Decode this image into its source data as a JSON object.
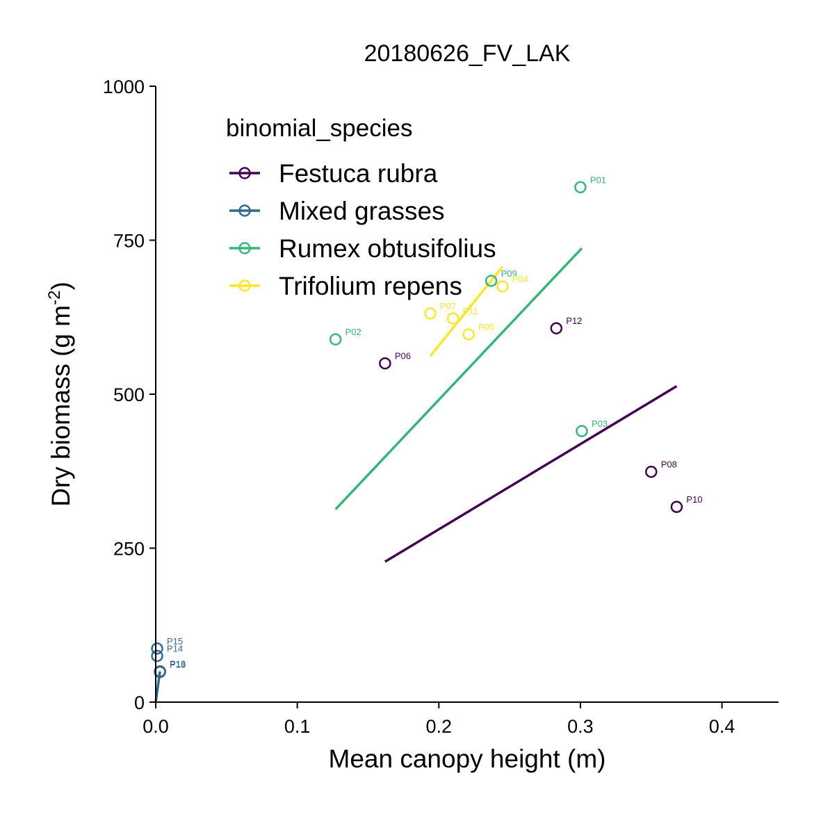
{
  "chart_data": {
    "type": "scatter",
    "title": "20180626_FV_LAK",
    "xlabel": "Mean canopy height (m)",
    "ylabel": "Dry biomass (g m",
    "ylabel_sup": "-2",
    "ylabel_close": ")",
    "xlim": [
      0,
      0.44
    ],
    "ylim": [
      0,
      1000
    ],
    "xticks": [
      0.0,
      0.1,
      0.2,
      0.3,
      0.4
    ],
    "xtick_labels": [
      "0.0",
      "0.1",
      "0.2",
      "0.3",
      "0.4"
    ],
    "yticks": [
      0,
      250,
      500,
      750,
      1000
    ],
    "ytick_labels": [
      "0",
      "250",
      "500",
      "750",
      "1000"
    ],
    "grid": false,
    "legend": {
      "title": "binomial_species",
      "position": "top-left"
    },
    "series": [
      {
        "name": "Festuca rubra",
        "color": "#440154",
        "points": [
          {
            "label": "P06",
            "x": 0.162,
            "y": 550
          },
          {
            "label": "P12",
            "x": 0.283,
            "y": 607
          },
          {
            "label": "P08",
            "x": 0.35,
            "y": 374
          },
          {
            "label": "P10",
            "x": 0.368,
            "y": 317
          }
        ],
        "fit": {
          "x": [
            0.162,
            0.368
          ],
          "y": [
            228,
            513
          ]
        }
      },
      {
        "name": "Mixed grasses",
        "color": "#31688e",
        "points": [
          {
            "label": "P15",
            "x": 0.001,
            "y": 87
          },
          {
            "label": "P14",
            "x": 0.001,
            "y": 75
          },
          {
            "label": "P16",
            "x": 0.003,
            "y": 50
          },
          {
            "label": "P13",
            "x": 0.003,
            "y": 49
          }
        ],
        "fit": {
          "x": [
            0.0,
            0.003
          ],
          "y": [
            0,
            50
          ]
        }
      },
      {
        "name": "Rumex obtusifolius",
        "color": "#35b779",
        "points": [
          {
            "label": "P01",
            "x": 0.3,
            "y": 836
          },
          {
            "label": "P09",
            "x": 0.237,
            "y": 684
          },
          {
            "label": "P02",
            "x": 0.127,
            "y": 589
          },
          {
            "label": "P03",
            "x": 0.301,
            "y": 440
          }
        ],
        "fit": {
          "x": [
            0.127,
            0.301
          ],
          "y": [
            313,
            737
          ]
        }
      },
      {
        "name": "Trifolium repens",
        "color": "#fde725",
        "points": [
          {
            "label": "P04",
            "x": 0.245,
            "y": 675
          },
          {
            "label": "P07",
            "x": 0.194,
            "y": 631
          },
          {
            "label": "P11",
            "x": 0.21,
            "y": 623
          },
          {
            "label": "P05",
            "x": 0.221,
            "y": 597
          }
        ],
        "fit": {
          "x": [
            0.194,
            0.245
          ],
          "y": [
            562,
            707
          ]
        }
      }
    ]
  }
}
